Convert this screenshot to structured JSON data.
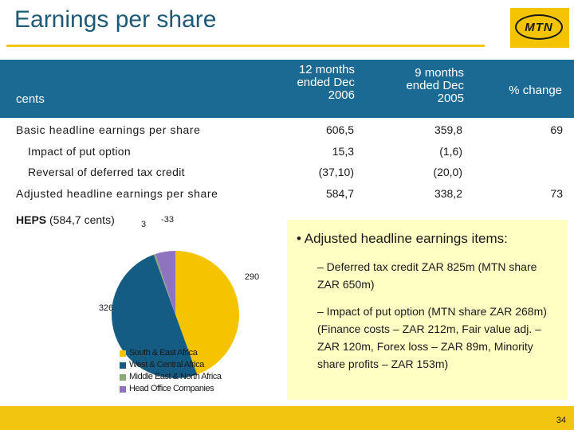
{
  "slide": {
    "title": "Earnings per share",
    "logo_text": "MTN",
    "page_number": "34"
  },
  "table": {
    "unit_header": "cents",
    "col1_header": "12 months ended Dec 2006",
    "col2_header": "9 months ended Dec 2005",
    "col3_header": "% change",
    "rows": [
      {
        "label": "Basic headline earnings per share",
        "v1": "606,5",
        "v2": "359,8",
        "v3": "69"
      },
      {
        "label": "Impact of put option",
        "v1": "15,3",
        "v2": "(1,6)",
        "v3": ""
      },
      {
        "label": "Reversal of deferred tax credit",
        "v1": "(37,10)",
        "v2": "(20,0)",
        "v3": ""
      },
      {
        "label": "Adjusted headline earnings per share",
        "v1": "584,7",
        "v2": "338,2",
        "v3": "73"
      }
    ]
  },
  "heps": {
    "bold": "HEPS",
    "rest": " (584,7 cents)"
  },
  "chart_data": {
    "type": "pie",
    "title": "",
    "categories": [
      "South & East Africa",
      "West & Central Africa",
      "Middle East & North Africa",
      "Head Office Companies"
    ],
    "values": [
      290,
      326,
      3,
      -33
    ],
    "data_labels": [
      "290",
      "326",
      "3",
      "-33"
    ],
    "colors": [
      "#f5c400",
      "#155c84",
      "#8aa77a",
      "#8e74bf"
    ],
    "legend_position": "bottom"
  },
  "notes": {
    "main": "• Adjusted headline earnings items:",
    "item1": "– Deferred tax credit ZAR 825m (MTN share ZAR 650m)",
    "item2": "– Impact of put option (MTN share ZAR 268m) (Finance costs – ZAR 212m, Fair value adj. – ZAR 120m, Forex loss – ZAR 89m, Minority share profits – ZAR 153m)"
  }
}
